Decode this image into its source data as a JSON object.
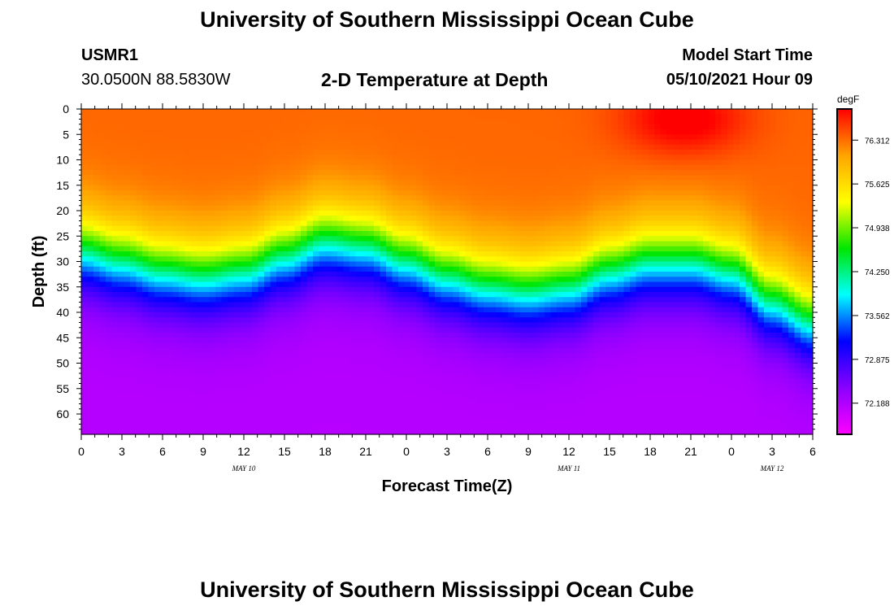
{
  "page": {
    "title_top": "University of Southern Mississippi Ocean Cube",
    "title_bottom": "University of Southern Mississippi Ocean Cube",
    "station_id": "USMR1",
    "station_coords": "30.0500N  88.5830W",
    "model_start_label": "Model Start Time",
    "model_start_value": "05/10/2021 Hour 09"
  },
  "chart_data": {
    "type": "heatmap",
    "title": "2-D Temperature at Depth",
    "xlabel": "Forecast Time(Z)",
    "ylabel": "Depth (ft)",
    "x_range_hours": [
      0,
      54
    ],
    "y_range_ft": [
      0,
      64
    ],
    "x_tick_labels": [
      "0",
      "3",
      "6",
      "9",
      "12",
      "15",
      "18",
      "21",
      "0",
      "3",
      "6",
      "9",
      "12",
      "15",
      "18",
      "21",
      "0",
      "3",
      "6"
    ],
    "y_tick_labels": [
      "0",
      "5",
      "10",
      "15",
      "20",
      "25",
      "30",
      "35",
      "40",
      "45",
      "50",
      "55",
      "60"
    ],
    "date_labels": [
      {
        "text": "MAY 10",
        "x_hours": 12
      },
      {
        "text": "MAY 11",
        "x_hours": 36
      },
      {
        "text": "MAY 12",
        "x_hours": 51
      }
    ],
    "colorbar": {
      "unit": "degF",
      "tick_labels": [
        "76.312",
        "75.625",
        "74.938",
        "74.250",
        "73.562",
        "72.875",
        "72.188"
      ],
      "range": [
        71.7,
        76.8
      ],
      "colors": [
        "#ff00ff",
        "#8a00ff",
        "#0000ff",
        "#00ffff",
        "#00e600",
        "#ffff00",
        "#ffa500",
        "#ff0000"
      ]
    },
    "isotherm_depth_ft": {
      "x_hours": [
        0,
        3,
        6,
        9,
        12,
        15,
        18,
        21,
        24,
        27,
        30,
        33,
        36,
        39,
        42,
        45,
        48,
        51,
        54
      ],
      "depth_ft": [
        28,
        30,
        32,
        33,
        32,
        29,
        26,
        27,
        30,
        33,
        35,
        36,
        35,
        32,
        30,
        30,
        32,
        38,
        42
      ]
    },
    "warm_spot": {
      "x_hours": 44.5,
      "depth_ft": 2,
      "label": "76.5"
    }
  }
}
